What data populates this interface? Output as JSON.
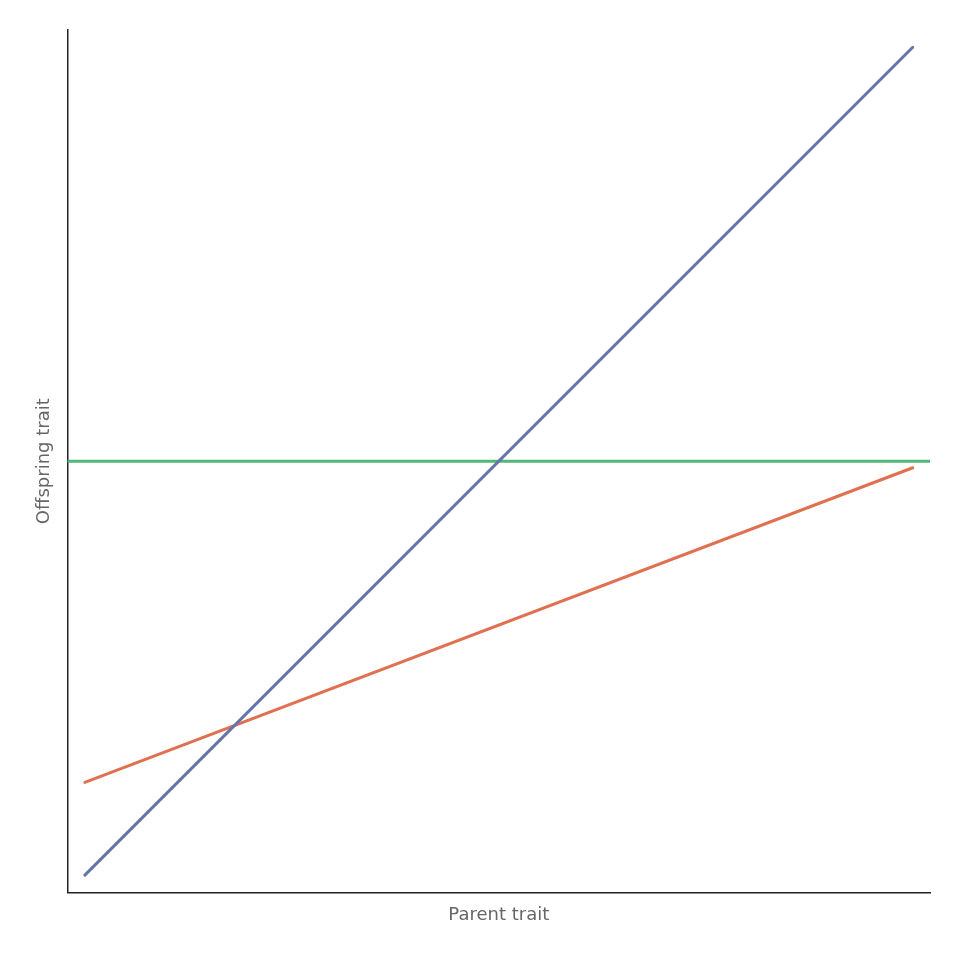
{
  "chart_data": {
    "type": "line",
    "xlabel": "Parent trait",
    "ylabel": "Offspring trait",
    "x": [
      0,
      0.02,
      0.98,
      1
    ],
    "series": [
      {
        "color": "#6674a8",
        "values": [
          null,
          0.02,
          0.98,
          null
        ]
      },
      {
        "color": "#e07050",
        "values": [
          null,
          0.1276,
          0.4924,
          null
        ]
      },
      {
        "color": "#50b878",
        "values": [
          0.5,
          0.5,
          0.5,
          0.5
        ]
      }
    ],
    "xlim": [
      0,
      1
    ],
    "ylim": [
      0,
      1
    ],
    "grid": false,
    "tick_labels": false
  }
}
